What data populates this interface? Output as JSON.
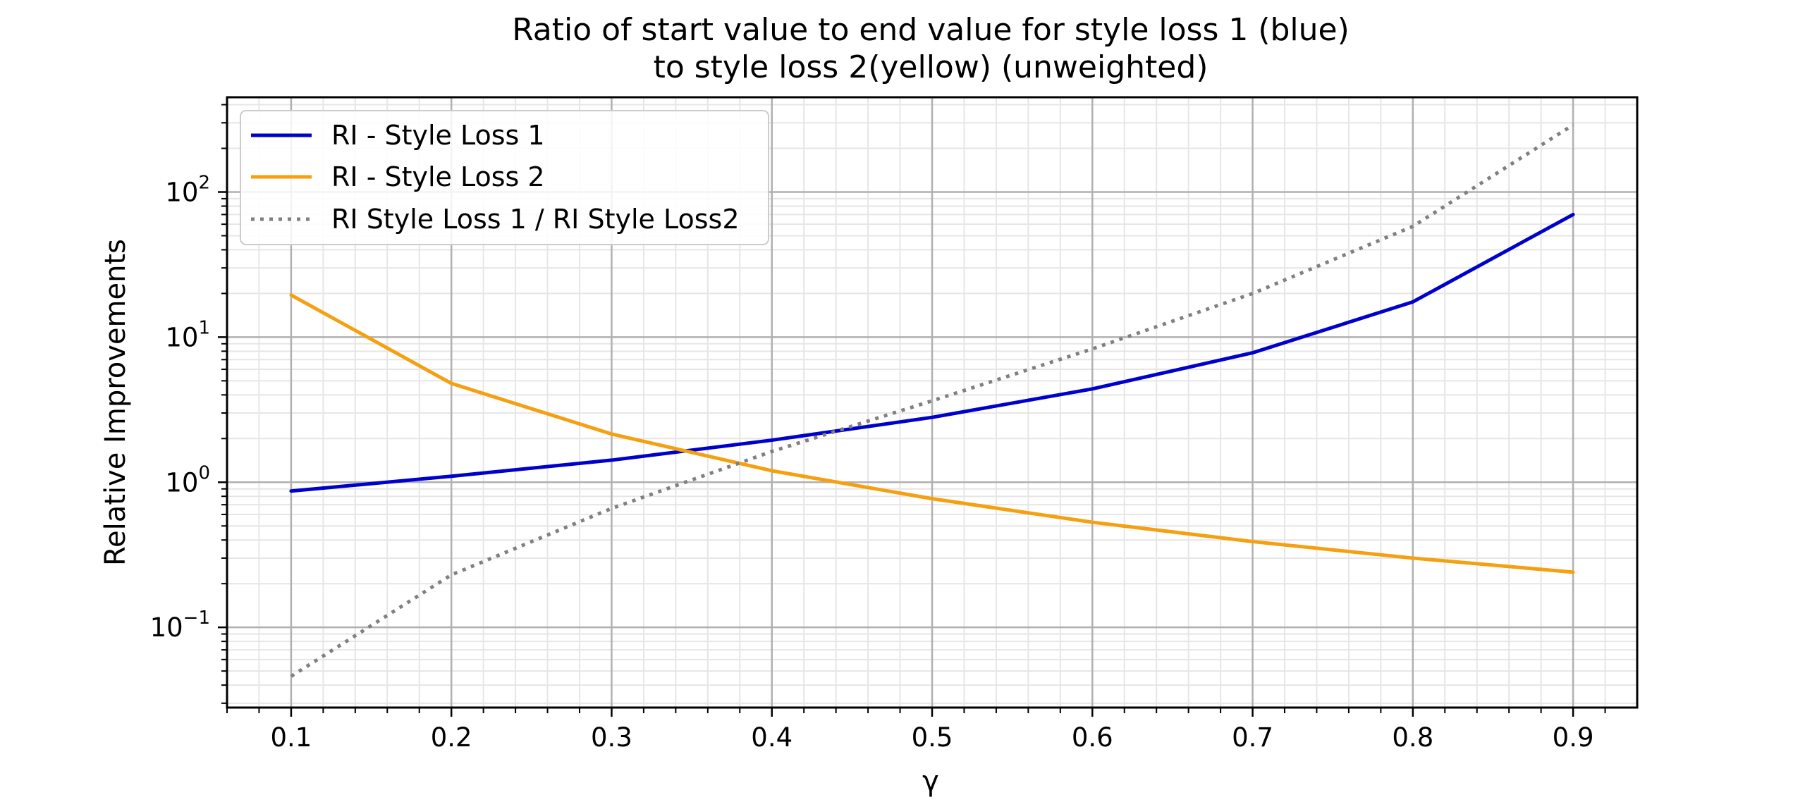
{
  "chart_data": {
    "type": "line",
    "title_lines": [
      "Ratio of start value to end value for style loss 1 (blue)",
      "to style loss 2(yellow) (unweighted)"
    ],
    "xlabel": "γ",
    "ylabel": "Relative Improvements",
    "x_scale": "linear",
    "y_scale": "log",
    "xlim": [
      0.06,
      0.94
    ],
    "ylim": [
      0.028,
      450
    ],
    "x_ticks": [
      0.1,
      0.2,
      0.3,
      0.4,
      0.5,
      0.6,
      0.7,
      0.8,
      0.9
    ],
    "x_tick_labels": [
      "0.1",
      "0.2",
      "0.3",
      "0.4",
      "0.5",
      "0.6",
      "0.7",
      "0.8",
      "0.9"
    ],
    "y_ticks": [
      {
        "value": 0.1,
        "base": "10",
        "exp": "−1"
      },
      {
        "value": 1,
        "base": "10",
        "exp": "0"
      },
      {
        "value": 10,
        "base": "10",
        "exp": "1"
      },
      {
        "value": 100,
        "base": "10",
        "exp": "2"
      }
    ],
    "grid": true,
    "minor_grid": true,
    "legend_position": "top-left",
    "x": [
      0.1,
      0.2,
      0.3,
      0.4,
      0.5,
      0.6,
      0.7,
      0.8,
      0.9
    ],
    "series": [
      {
        "name": "RI - Style Loss 1",
        "color": "#0000cc",
        "style": "solid",
        "values": [
          0.87,
          1.1,
          1.42,
          1.95,
          2.8,
          4.4,
          7.8,
          17.5,
          70
        ]
      },
      {
        "name": "RI - Style Loss 2",
        "color": "#f5a011",
        "style": "solid",
        "values": [
          19.5,
          4.8,
          2.15,
          1.2,
          0.77,
          0.53,
          0.39,
          0.3,
          0.24
        ]
      },
      {
        "name": "RI Style Loss 1 / RI Style Loss2",
        "color": "#808080",
        "style": "dotted",
        "values": [
          0.046,
          0.23,
          0.66,
          1.63,
          3.64,
          8.3,
          20,
          58,
          290
        ]
      }
    ]
  }
}
